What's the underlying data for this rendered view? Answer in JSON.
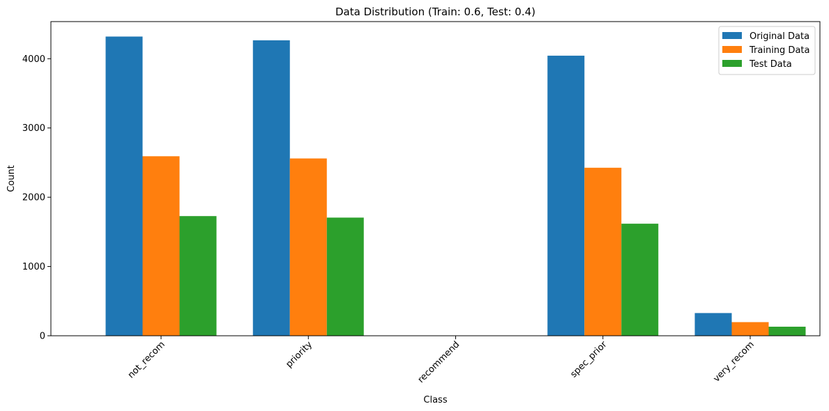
{
  "chart_data": {
    "type": "bar",
    "title": "Data Distribution (Train: 0.6, Test: 0.4)",
    "xlabel": "Class",
    "ylabel": "Count",
    "categories": [
      "not_recom",
      "priority",
      "recommend",
      "spec_prior",
      "very_recom"
    ],
    "series": [
      {
        "name": "Original Data",
        "color": "#1f77b4",
        "values": [
          4320,
          4266,
          2,
          4044,
          328
        ]
      },
      {
        "name": "Training Data",
        "color": "#ff7f0e",
        "values": [
          2592,
          2560,
          1,
          2426,
          197
        ]
      },
      {
        "name": "Test Data",
        "color": "#2ca02c",
        "values": [
          1728,
          1706,
          1,
          1618,
          131
        ]
      }
    ],
    "ylim": [
      0,
      4536
    ],
    "yticks": [
      0,
      1000,
      2000,
      3000,
      4000
    ],
    "legend_position": "top-right",
    "grid": false,
    "tick_label_rotation": 45
  }
}
